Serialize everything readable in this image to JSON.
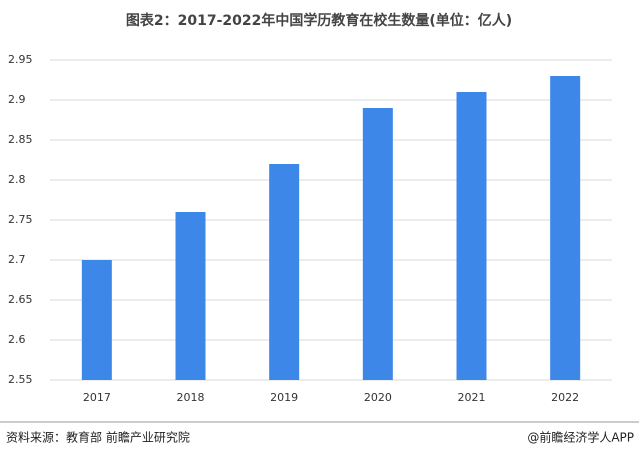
{
  "chart_data": {
    "type": "bar",
    "title": "图表2：2017-2022年中国学历教育在校生数量(单位：亿人)",
    "categories": [
      "2017",
      "2018",
      "2019",
      "2020",
      "2021",
      "2022"
    ],
    "values": [
      2.7,
      2.76,
      2.82,
      2.89,
      2.91,
      2.93
    ],
    "color": "#3d87e8",
    "ylim": [
      2.55,
      2.95
    ],
    "yticks": [
      2.55,
      2.6,
      2.65,
      2.7,
      2.75,
      2.8,
      2.85,
      2.9,
      2.95
    ],
    "grid": true,
    "source": "资料来源：教育部 前瞻产业研究院",
    "credit": "@前瞻经济学人APP"
  }
}
